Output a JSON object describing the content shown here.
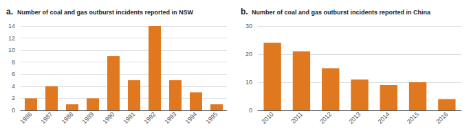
{
  "chart_data": [
    {
      "type": "bar",
      "title": "Number of coal and gas outburst incidents reported in NSW",
      "annotation": "a.",
      "categories": [
        "1986",
        "1987",
        "1988",
        "1989",
        "1990",
        "1991",
        "1992",
        "1993",
        "1994",
        "1995"
      ],
      "values": [
        2,
        4,
        1,
        2,
        9,
        5,
        14,
        5,
        3,
        1
      ],
      "color": "#E07820",
      "ylim": [
        0,
        14
      ],
      "yticks": [
        0,
        2,
        4,
        6,
        8,
        10,
        12,
        14
      ],
      "grid": true
    },
    {
      "type": "bar",
      "title": "Number of coal and gas outburst incidents reported in China",
      "annotation": "b.",
      "categories": [
        "2010",
        "2011",
        "2012",
        "2013",
        "2014",
        "2015",
        "2016"
      ],
      "values": [
        24,
        21,
        15,
        11,
        9,
        10,
        4
      ],
      "color": "#E07820",
      "ylim": [
        0,
        30
      ],
      "yticks": [
        0,
        10,
        20,
        30
      ],
      "grid": true
    }
  ]
}
